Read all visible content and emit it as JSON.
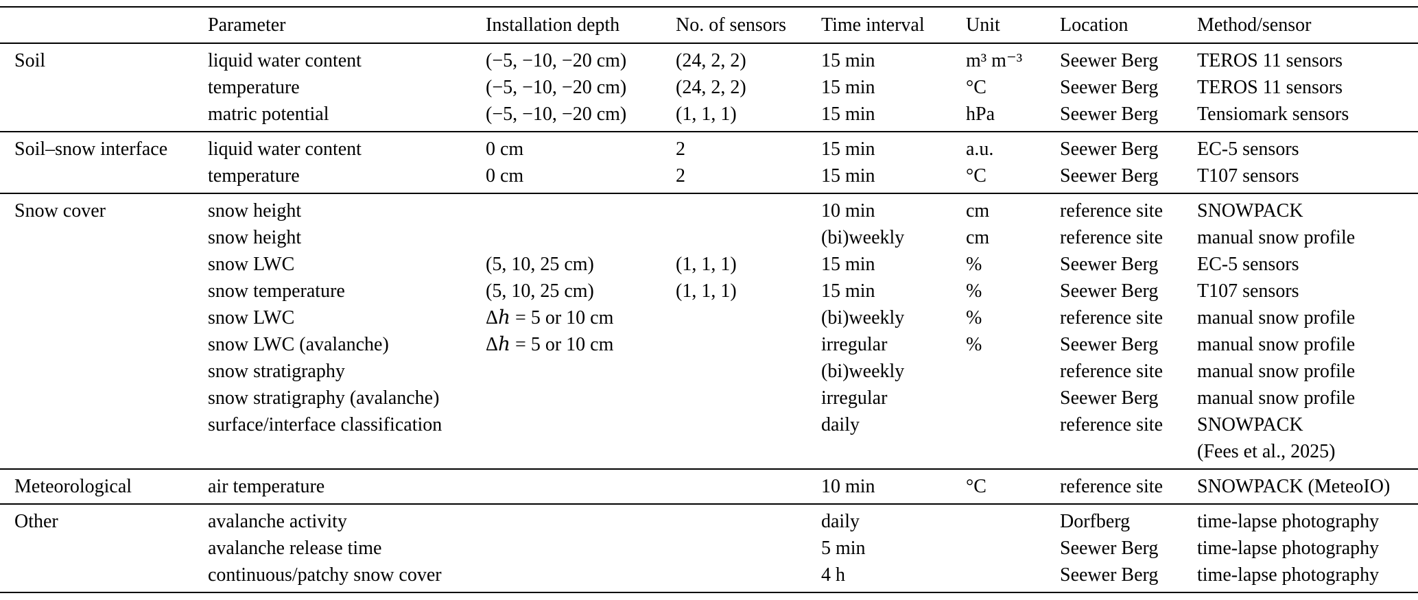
{
  "table": {
    "headers": [
      "",
      "Parameter",
      "Installation depth",
      "No. of sensors",
      "Time interval",
      "Unit",
      "Location",
      "Method/sensor"
    ],
    "groups": [
      {
        "category": "Soil",
        "rows": [
          [
            "liquid water content",
            "(−5, −10, −20 cm)",
            "(24, 2, 2)",
            "15 min",
            "m³ m⁻³",
            "Seewer Berg",
            "TEROS 11 sensors"
          ],
          [
            "temperature",
            "(−5, −10, −20 cm)",
            "(24, 2, 2)",
            "15 min",
            "°C",
            "Seewer Berg",
            "TEROS 11 sensors"
          ],
          [
            "matric potential",
            "(−5, −10, −20 cm)",
            "(1, 1, 1)",
            "15 min",
            "hPa",
            "Seewer Berg",
            "Tensiomark sensors"
          ]
        ]
      },
      {
        "category": "Soil–snow interface",
        "rows": [
          [
            "liquid water content",
            "0 cm",
            "2",
            "15 min",
            "a.u.",
            "Seewer Berg",
            "EC-5 sensors"
          ],
          [
            "temperature",
            "0 cm",
            "2",
            "15 min",
            "°C",
            "Seewer Berg",
            "T107 sensors"
          ]
        ]
      },
      {
        "category": "Snow cover",
        "rows": [
          [
            "snow height",
            "",
            "",
            "10 min",
            "cm",
            "reference site",
            "SNOWPACK"
          ],
          [
            "snow height",
            "",
            "",
            "(bi)weekly",
            "cm",
            "reference site",
            "manual snow profile"
          ],
          [
            "snow LWC",
            "(5, 10, 25 cm)",
            "(1, 1, 1)",
            "15 min",
            "%",
            "Seewer Berg",
            "EC-5 sensors"
          ],
          [
            "snow temperature",
            "(5, 10, 25 cm)",
            "(1, 1, 1)",
            "15 min",
            "%",
            "Seewer Berg",
            "T107 sensors"
          ],
          [
            "snow LWC",
            "Δℎ = 5 or 10 cm",
            "",
            "(bi)weekly",
            "%",
            "reference site",
            "manual snow profile"
          ],
          [
            "snow LWC (avalanche)",
            "Δℎ = 5 or 10 cm",
            "",
            "irregular",
            "%",
            "Seewer Berg",
            "manual snow profile"
          ],
          [
            "snow stratigraphy",
            "",
            "",
            "(bi)weekly",
            "",
            "reference site",
            "manual snow profile"
          ],
          [
            "snow stratigraphy (avalanche)",
            "",
            "",
            "irregular",
            "",
            "Seewer Berg",
            "manual snow profile"
          ],
          [
            "surface/interface classification",
            "",
            "",
            "daily",
            "",
            "reference site",
            "SNOWPACK\n(Fees et al., 2025)"
          ]
        ]
      },
      {
        "category": "Meteorological",
        "rows": [
          [
            "air temperature",
            "",
            "",
            "10 min",
            "°C",
            "reference site",
            "SNOWPACK (MeteoIO)"
          ]
        ]
      },
      {
        "category": "Other",
        "rows": [
          [
            "avalanche activity",
            "",
            "",
            "daily",
            "",
            "Dorfberg",
            "time-lapse photography"
          ],
          [
            "avalanche release time",
            "",
            "",
            "5 min",
            "",
            "Seewer Berg",
            "time-lapse photography"
          ],
          [
            "continuous/patchy snow cover",
            "",
            "",
            "4 h",
            "",
            "Seewer Berg",
            "time-lapse photography"
          ]
        ]
      }
    ]
  }
}
